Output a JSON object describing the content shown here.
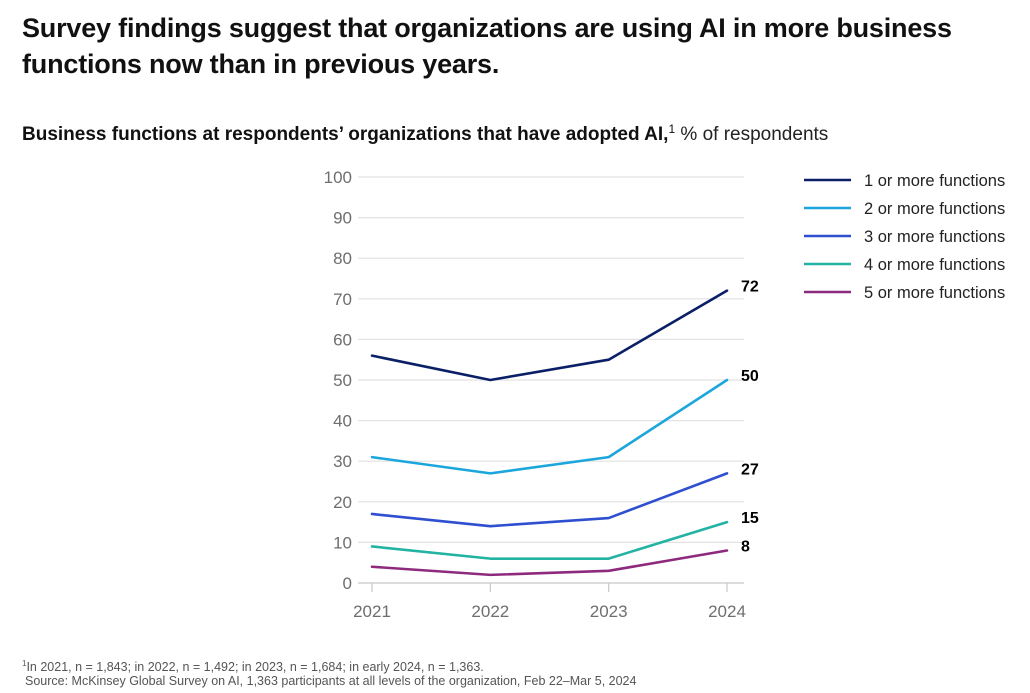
{
  "headline": "Survey findings suggest that organizations are using AI in more business functions now than in previous years.",
  "subtitle": {
    "bold": "Business functions at respondents’ organizations that have adopted AI,",
    "footnote_ref": "1",
    "unit": " % of respondents"
  },
  "chart_data": {
    "type": "line",
    "title": "Business functions at respondents’ organizations that have adopted AI, % of respondents",
    "xlabel": "",
    "ylabel": "% of respondents",
    "x": [
      "2021",
      "2022",
      "2023",
      "2024"
    ],
    "ylim": [
      0,
      100
    ],
    "yticks": [
      0,
      10,
      20,
      30,
      40,
      50,
      60,
      70,
      80,
      90,
      100
    ],
    "grid": true,
    "legend_position": "right",
    "series": [
      {
        "name": "1 or more functions",
        "color": "#0b1f66",
        "values": [
          56,
          50,
          55,
          72
        ],
        "end_label": "72"
      },
      {
        "name": "2 or more functions",
        "color": "#1ba6dc",
        "values": [
          31,
          27,
          31,
          50
        ],
        "end_label": "50"
      },
      {
        "name": "3 or more functions",
        "color": "#2f4fd1",
        "values": [
          17,
          14,
          16,
          27
        ],
        "end_label": "27"
      },
      {
        "name": "4 or more functions",
        "color": "#22b3a3",
        "values": [
          9,
          6,
          6,
          15
        ],
        "end_label": "15"
      },
      {
        "name": "5 or more functions",
        "color": "#8e2a7e",
        "values": [
          4,
          2,
          3,
          8
        ],
        "end_label": "8"
      }
    ]
  },
  "footnote": {
    "marker": "1",
    "text": "In 2021, n = 1,843; in 2022, n = 1,492; in 2023, n = 1,684; in early 2024, n = 1,363."
  },
  "source": "Source: McKinsey Global Survey on AI, 1,363 participants at all levels of the organization, Feb 22–Mar 5, 2024"
}
